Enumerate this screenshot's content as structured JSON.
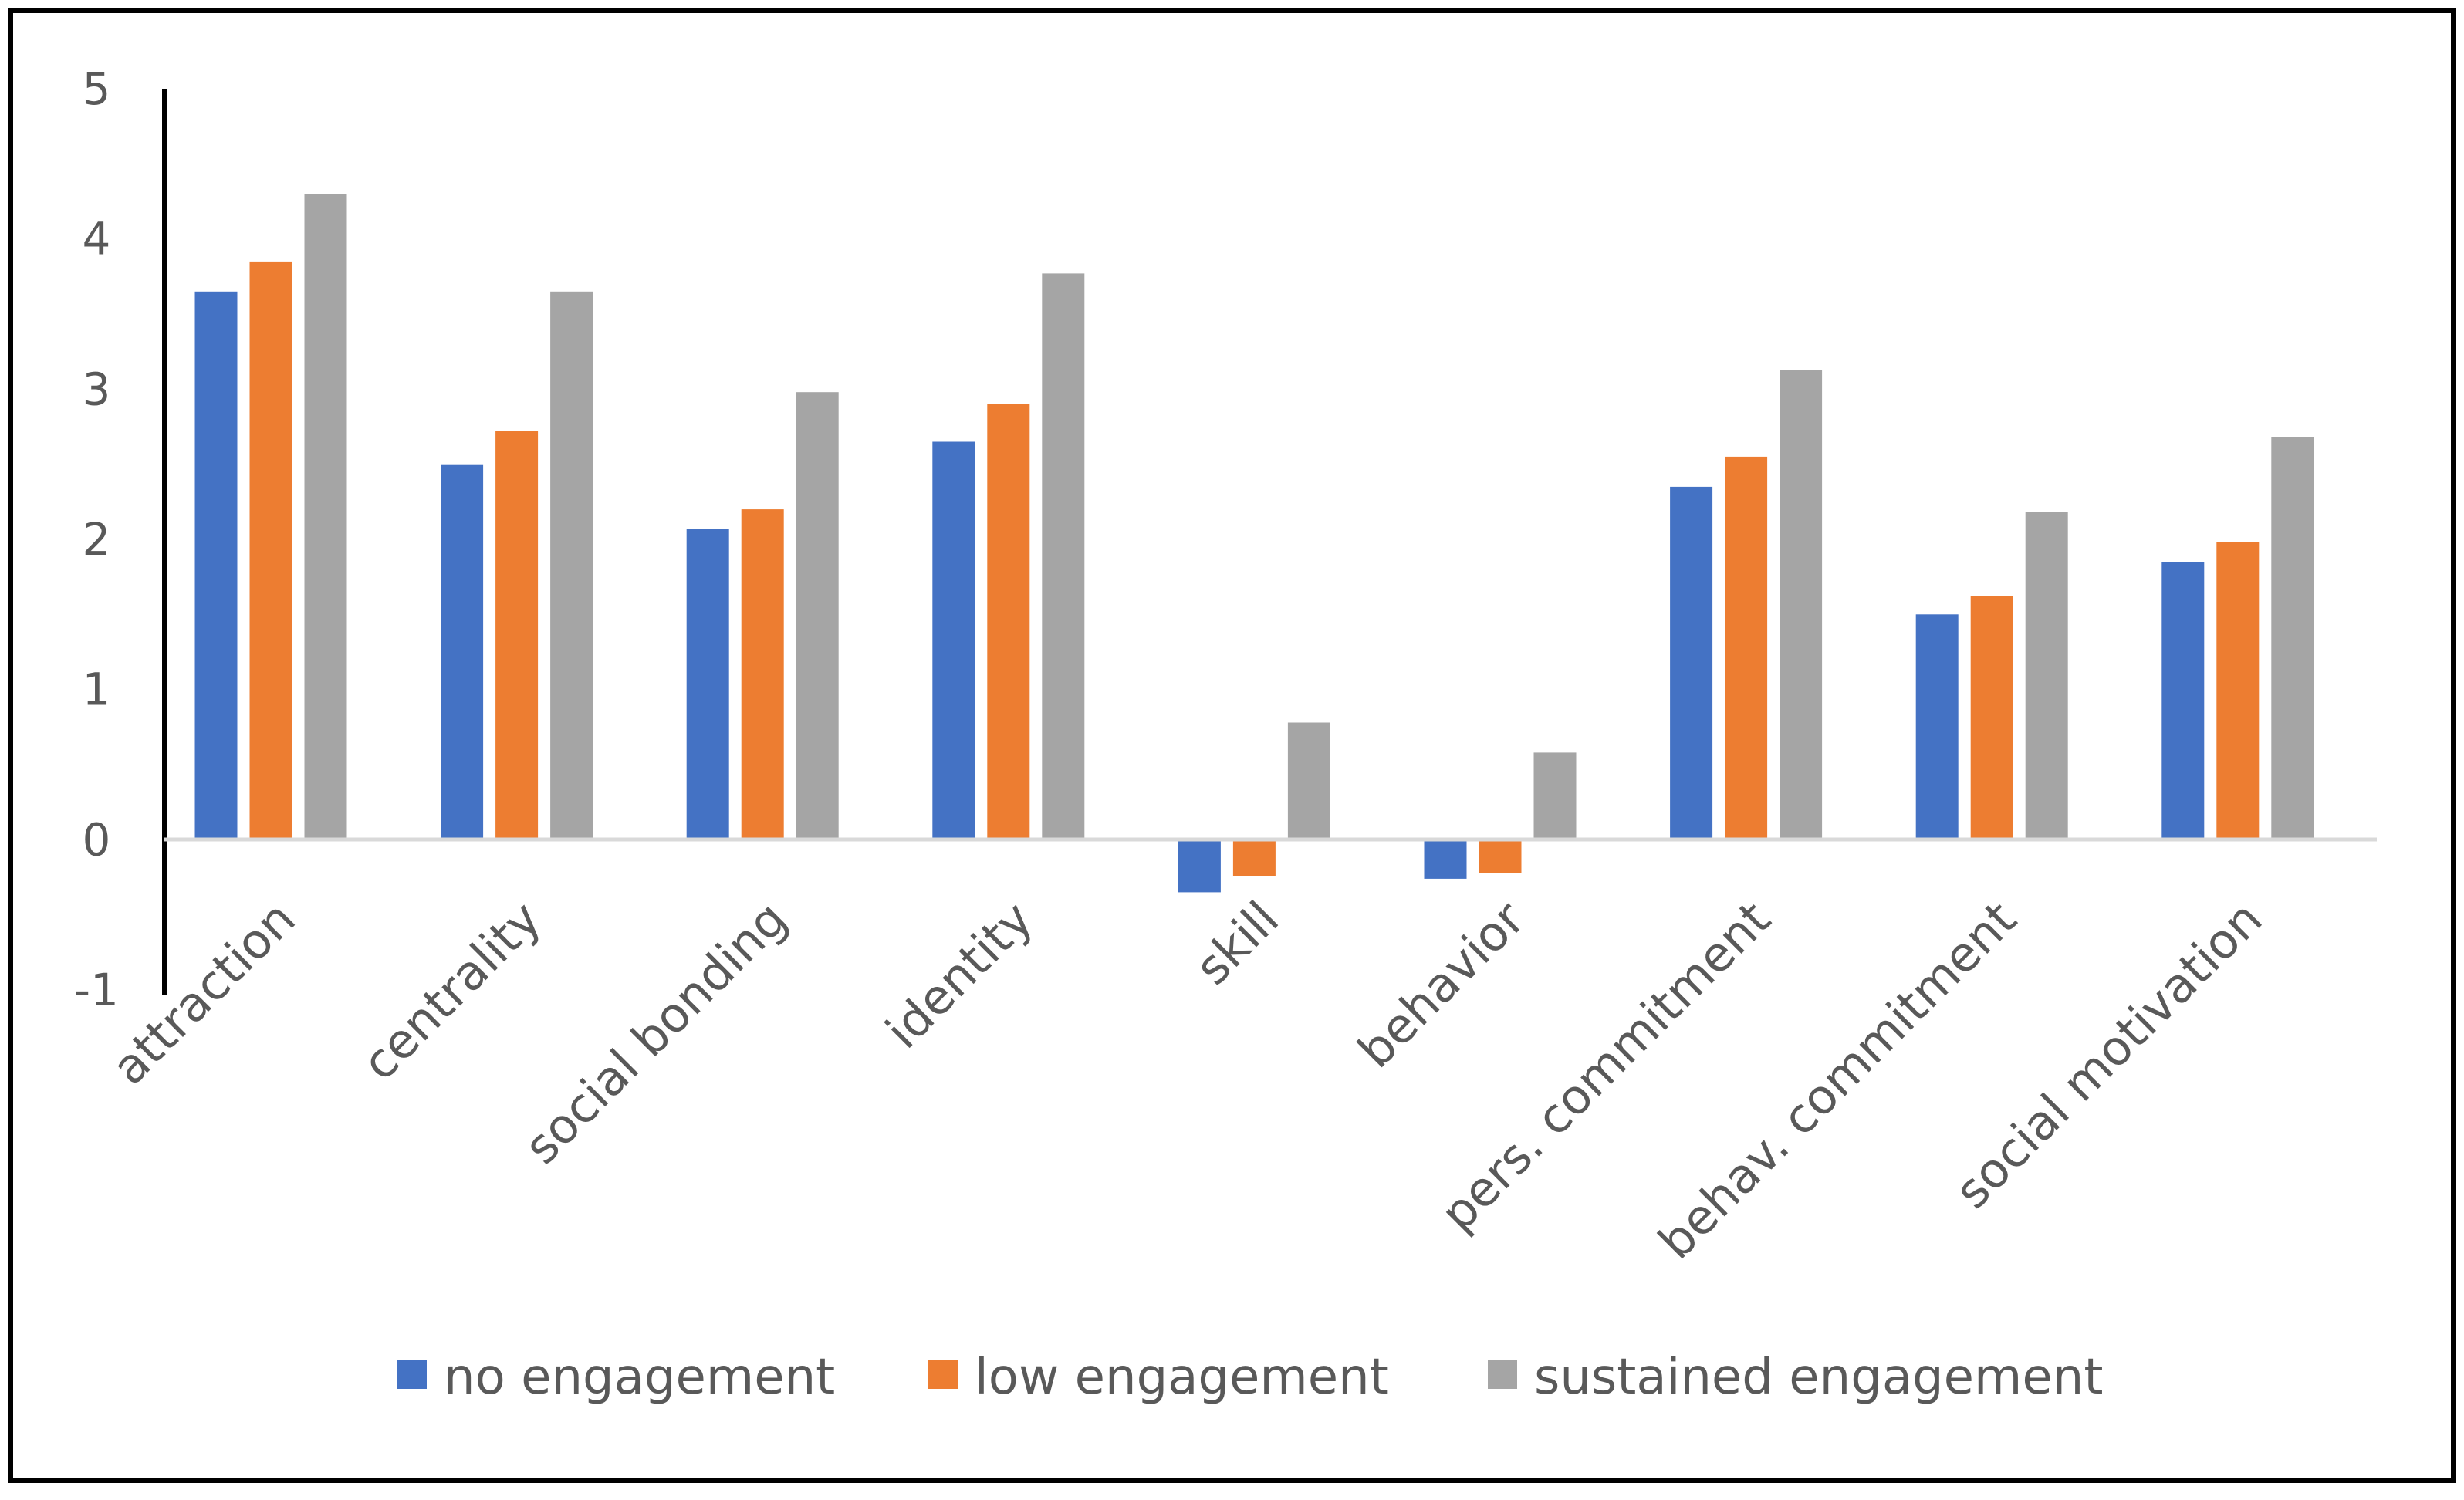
{
  "chart_data": {
    "type": "bar",
    "title": "",
    "xlabel": "",
    "ylabel": "",
    "ylim": [
      -1,
      5
    ],
    "yticks": [
      -1,
      0,
      1,
      2,
      3,
      4,
      5
    ],
    "grid": false,
    "legend_position": "bottom",
    "categories": [
      "attraction",
      "centrality",
      "social bonding",
      "identity",
      "skill",
      "behavior",
      "pers. commitment",
      "behav. commitment",
      "social motivation"
    ],
    "series": [
      {
        "name": "no engagement",
        "color": "#4472C4",
        "values": [
          3.65,
          2.5,
          2.07,
          2.65,
          -0.35,
          -0.26,
          2.35,
          1.5,
          1.85
        ]
      },
      {
        "name": "low engagement",
        "color": "#ED7D31",
        "values": [
          3.85,
          2.72,
          2.2,
          2.9,
          -0.24,
          -0.22,
          2.55,
          1.62,
          1.98
        ]
      },
      {
        "name": "sustained engagement",
        "color": "#A5A5A5",
        "values": [
          4.3,
          3.65,
          2.98,
          3.77,
          0.78,
          0.58,
          3.13,
          2.18,
          2.68
        ]
      }
    ]
  }
}
